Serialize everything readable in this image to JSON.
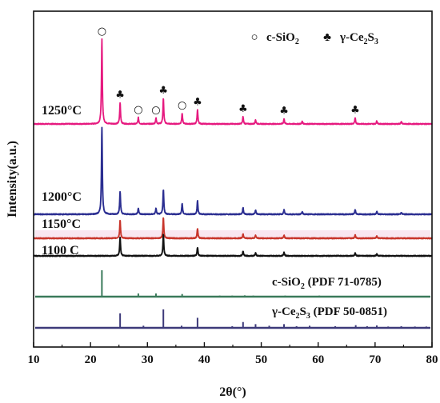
{
  "chart_data": {
    "type": "line",
    "xlabel": "2θ(°)",
    "ylabel": "Intensity(a.u.)",
    "xlim": [
      10,
      80
    ],
    "xticks": [
      "10",
      "20",
      "30",
      "40",
      "50",
      "60",
      "70",
      "80"
    ],
    "legend": {
      "position": "top-right",
      "entries": [
        {
          "symbol": "○",
          "text_main": "c-SiO",
          "text_sub": "2",
          "text_after": ""
        },
        {
          "symbol": "♣",
          "text_main": "γ-Ce",
          "text_sub": "2",
          "text_after": "S",
          "text_sub2": "3"
        }
      ]
    },
    "series": [
      {
        "name": "1250°C",
        "color": "#e6197f",
        "baseline": 1.0,
        "peaks": [
          [
            22.0,
            200
          ],
          [
            25.2,
            50
          ],
          [
            28.4,
            15
          ],
          [
            31.5,
            14
          ],
          [
            32.8,
            60
          ],
          [
            36.1,
            25
          ],
          [
            38.8,
            33
          ],
          [
            46.8,
            17
          ],
          [
            49.0,
            10
          ],
          [
            54.0,
            12
          ],
          [
            57.2,
            6
          ],
          [
            66.5,
            14
          ],
          [
            70.3,
            7
          ],
          [
            74.6,
            5
          ]
        ]
      },
      {
        "name": "1200°C",
        "color": "#2b2e91",
        "baseline": 1.0,
        "peaks": [
          [
            22.0,
            210
          ],
          [
            25.2,
            55
          ],
          [
            28.4,
            15
          ],
          [
            31.5,
            14
          ],
          [
            32.8,
            60
          ],
          [
            36.1,
            26
          ],
          [
            38.8,
            32
          ],
          [
            46.8,
            16
          ],
          [
            49.0,
            10
          ],
          [
            54.0,
            11
          ],
          [
            57.2,
            6
          ],
          [
            66.5,
            12
          ],
          [
            70.3,
            7
          ],
          [
            74.6,
            5
          ]
        ]
      },
      {
        "name": "1150°C",
        "color": "#c8352b",
        "baseline": 1.0,
        "peaks": [
          [
            25.2,
            45
          ],
          [
            32.8,
            52
          ],
          [
            38.8,
            24
          ],
          [
            46.8,
            11
          ],
          [
            49.0,
            8
          ],
          [
            54.0,
            8
          ],
          [
            66.5,
            9
          ],
          [
            70.3,
            5
          ]
        ]
      },
      {
        "name": "1100 C",
        "color": "#111111",
        "baseline": 1.0,
        "peaks": [
          [
            25.2,
            48
          ],
          [
            32.8,
            56
          ],
          [
            38.8,
            22
          ],
          [
            46.8,
            12
          ],
          [
            49.0,
            8
          ],
          [
            54.0,
            9
          ],
          [
            66.5,
            8
          ],
          [
            70.3,
            5
          ]
        ]
      }
    ],
    "references": [
      {
        "name": "c-SiO2 (PDF 71-0785)",
        "label_main": "c-SiO",
        "label_sub": "2",
        "label_after": " (PDF 71-0785)",
        "color": "#3a7a5a",
        "lines": [
          [
            22.0,
            100
          ],
          [
            28.4,
            12
          ],
          [
            31.5,
            12
          ],
          [
            36.1,
            10
          ],
          [
            42.7,
            4
          ],
          [
            44.9,
            4
          ],
          [
            47.1,
            5
          ],
          [
            48.6,
            4
          ],
          [
            54.2,
            4
          ],
          [
            57.2,
            3
          ],
          [
            60.2,
            4
          ],
          [
            62.0,
            3
          ],
          [
            65.2,
            3
          ],
          [
            66.8,
            3
          ],
          [
            69.8,
            3
          ],
          [
            72.6,
            3
          ]
        ]
      },
      {
        "name": "γ-Ce2S3 (PDF 50-0851)",
        "label_main": "γ-Ce",
        "label_sub": "2",
        "label_mid": "S",
        "label_sub2": "3",
        "label_after": " (PDF 50-0851)",
        "color": "#3d3a7a",
        "lines": [
          [
            25.2,
            55
          ],
          [
            29.3,
            8
          ],
          [
            32.8,
            70
          ],
          [
            36.0,
            8
          ],
          [
            38.8,
            38
          ],
          [
            44.9,
            6
          ],
          [
            46.8,
            22
          ],
          [
            49.0,
            14
          ],
          [
            51.4,
            8
          ],
          [
            54.0,
            14
          ],
          [
            56.2,
            6
          ],
          [
            58.5,
            8
          ],
          [
            63.0,
            6
          ],
          [
            66.6,
            10
          ],
          [
            68.6,
            6
          ],
          [
            70.3,
            9
          ],
          [
            72.3,
            5
          ],
          [
            74.6,
            6
          ],
          [
            77.0,
            5
          ],
          [
            79.0,
            5
          ]
        ]
      }
    ],
    "markers": [
      {
        "x": 22.0,
        "symbol": "○"
      },
      {
        "x": 25.2,
        "symbol": "♣"
      },
      {
        "x": 28.4,
        "symbol": "○"
      },
      {
        "x": 31.5,
        "symbol": "○"
      },
      {
        "x": 32.8,
        "symbol": "♣"
      },
      {
        "x": 36.1,
        "symbol": "○"
      },
      {
        "x": 38.8,
        "symbol": "♣"
      },
      {
        "x": 46.8,
        "symbol": "♣"
      },
      {
        "x": 54.0,
        "symbol": "♣"
      },
      {
        "x": 66.5,
        "symbol": "♣"
      }
    ],
    "grid": false
  }
}
